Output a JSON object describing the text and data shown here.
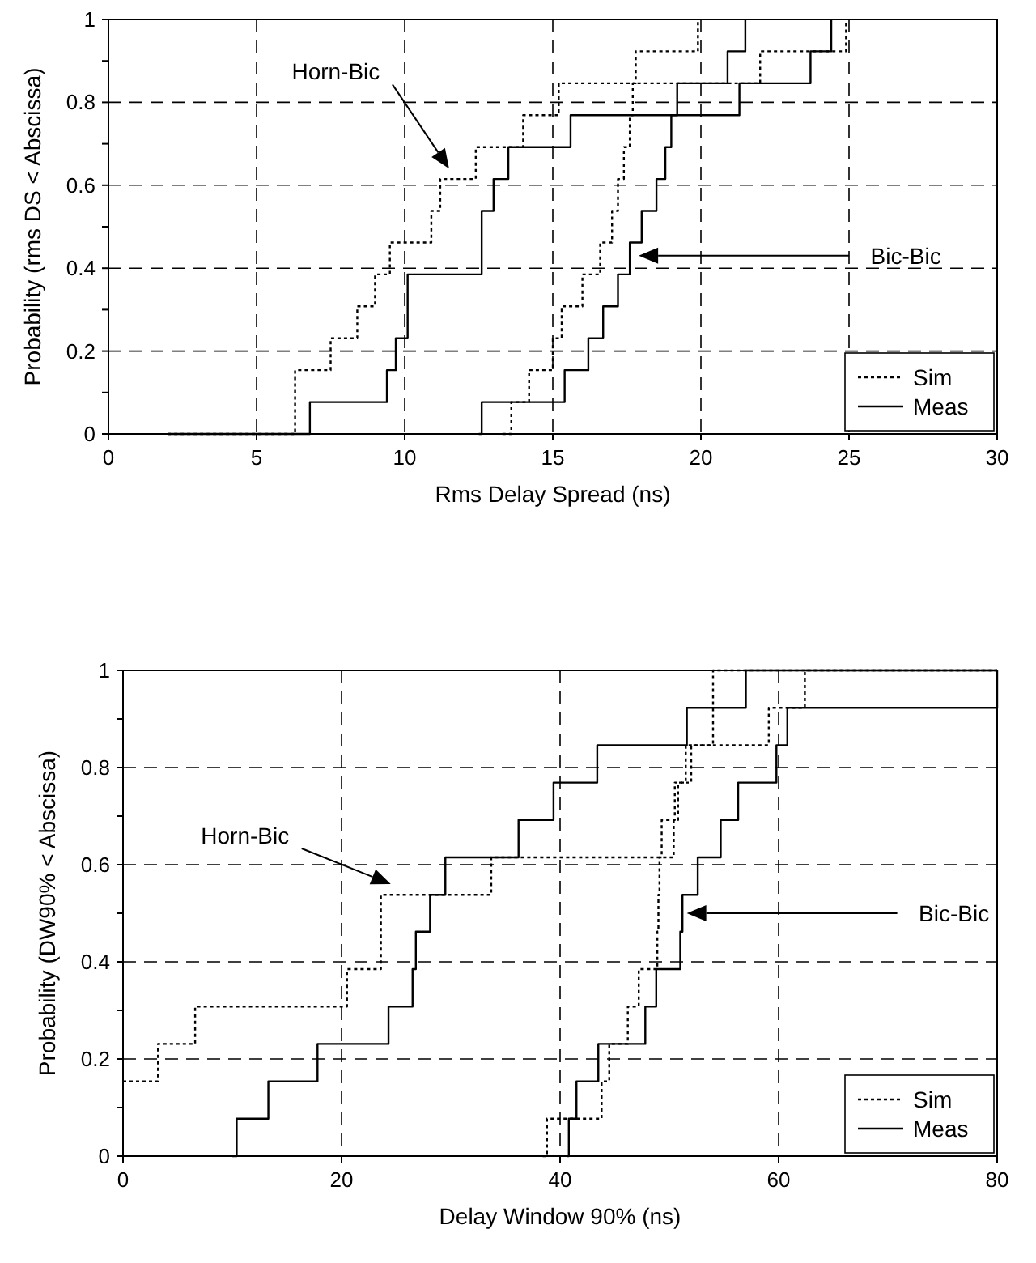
{
  "chart_data": [
    {
      "type": "step",
      "xlabel": "Rms Delay Spread (ns)",
      "ylabel": "Probability (rms DS < Abscissa)",
      "xlim": [
        0,
        30
      ],
      "ylim": [
        0,
        1
      ],
      "xticks": [
        0,
        5,
        10,
        15,
        20,
        25,
        30
      ],
      "yticks": [
        0,
        {
          "value": 0.1,
          "label": null
        },
        0.2,
        {
          "value": 0.3,
          "label": null
        },
        0.4,
        {
          "value": 0.5,
          "label": null
        },
        0.6,
        {
          "value": 0.7,
          "label": null
        },
        0.8,
        {
          "value": 0.9,
          "label": null
        },
        1
      ],
      "grid": true,
      "legend": "bottom right",
      "annotations": [
        "Horn-Bic",
        "Bic-Bic"
      ],
      "series": [
        {
          "name": "Sim",
          "color": "#000000",
          "line_style": "dotted",
          "x": [
            2,
            6.3,
            7.5,
            8.4,
            9.0,
            9.5,
            10.9,
            11.2,
            12.4,
            14.0,
            15.2,
            17.8,
            19.9
          ],
          "values": [
            0,
            0.154,
            0.231,
            0.308,
            0.385,
            0.462,
            0.538,
            0.615,
            0.692,
            0.769,
            0.846,
            0.923,
            1
          ]
        },
        {
          "name": "Meas",
          "color": "#000000",
          "line_style": "solid",
          "x": [
            2,
            6.8,
            9.4,
            9.7,
            10.1,
            12.6,
            13.0,
            13.5,
            14.3,
            15.6,
            21.3,
            23.7,
            24.4
          ],
          "values": [
            0,
            0.077,
            0.154,
            0.231,
            0.385,
            0.538,
            0.615,
            0.692,
            0.692,
            0.769,
            0.846,
            0.923,
            1
          ]
        },
        {
          "color": "#000000",
          "line_style": "dotted",
          "x": [
            13.3,
            13.6,
            14.2,
            15.0,
            15.3,
            16.0,
            16.6,
            17.0,
            17.2,
            17.4,
            17.6,
            17.7,
            22.0,
            24.9
          ],
          "values": [
            0,
            0.077,
            0.154,
            0.231,
            0.308,
            0.385,
            0.462,
            0.538,
            0.615,
            0.692,
            0.769,
            0.846,
            0.923,
            1
          ]
        },
        {
          "color": "#000000",
          "line_style": "solid",
          "x": [
            12.5,
            12.6,
            15.4,
            16.2,
            16.7,
            17.2,
            17.6,
            18.0,
            18.5,
            18.8,
            19.0,
            19.2,
            20.9,
            21.5
          ],
          "values": [
            0,
            0.077,
            0.154,
            0.231,
            0.308,
            0.385,
            0.462,
            0.538,
            0.615,
            0.692,
            0.769,
            0.846,
            0.923,
            1
          ]
        }
      ]
    },
    {
      "type": "step",
      "xlabel": "Delay Window 90% (ns)",
      "ylabel": "Probability (DW90% < Abscissa)",
      "xlim": [
        0,
        80
      ],
      "ylim": [
        0,
        1
      ],
      "xticks": [
        0,
        20,
        40,
        60,
        80
      ],
      "yticks": [
        0,
        {
          "value": 0.1,
          "label": null
        },
        0.2,
        {
          "value": 0.3,
          "label": null
        },
        0.4,
        {
          "value": 0.5,
          "label": null
        },
        0.6,
        {
          "value": 0.7,
          "label": null
        },
        0.8,
        {
          "value": 0.9,
          "label": null
        },
        1
      ],
      "grid": true,
      "legend": "bottom right",
      "annotations": [
        "Horn-Bic",
        "Bic-Bic"
      ],
      "series": [
        {
          "name": "Sim",
          "color": "#000000",
          "line_style": "dotted",
          "x": [
            0,
            3.2,
            6.6,
            20.0,
            20.5,
            23.6,
            33.7,
            50.3,
            50.4,
            50.8,
            52.0,
            59.1,
            62.4,
            80
          ],
          "values": [
            0.154,
            0.231,
            0.308,
            0.308,
            0.385,
            0.538,
            0.615,
            0.615,
            0.692,
            0.769,
            0.846,
            0.923,
            1,
            1
          ]
        },
        {
          "name": "Meas",
          "color": "#000000",
          "line_style": "solid",
          "x": [
            10,
            10.4,
            13.3,
            17.8,
            24.3,
            26.5,
            26.8,
            28.1,
            29.5,
            36.2,
            39.4,
            43.4,
            51.6,
            57,
            80
          ],
          "values": [
            0,
            0.077,
            0.154,
            0.231,
            0.308,
            0.385,
            0.462,
            0.538,
            0.615,
            0.692,
            0.769,
            0.846,
            0.923,
            1,
            1
          ]
        },
        {
          "color": "#000000",
          "line_style": "dotted",
          "x": [
            38.4,
            38.8,
            43.8,
            44.5,
            46.2,
            47.2,
            48.9,
            49.0,
            49.1,
            49.3,
            50.5,
            51.5,
            54,
            80
          ],
          "values": [
            0,
            0.077,
            0.154,
            0.231,
            0.308,
            0.385,
            0.462,
            0.538,
            0.615,
            0.692,
            0.769,
            0.846,
            1,
            1
          ]
        },
        {
          "color": "#000000",
          "line_style": "solid",
          "x": [
            40.6,
            40.8,
            41.5,
            43.5,
            47.8,
            48.8,
            51.0,
            51.2,
            52.6,
            54.7,
            56.3,
            59.8,
            60.8,
            80
          ],
          "values": [
            0,
            0.077,
            0.154,
            0.231,
            0.308,
            0.385,
            0.462,
            0.538,
            0.615,
            0.692,
            0.769,
            0.846,
            0.923,
            1
          ]
        }
      ]
    }
  ]
}
